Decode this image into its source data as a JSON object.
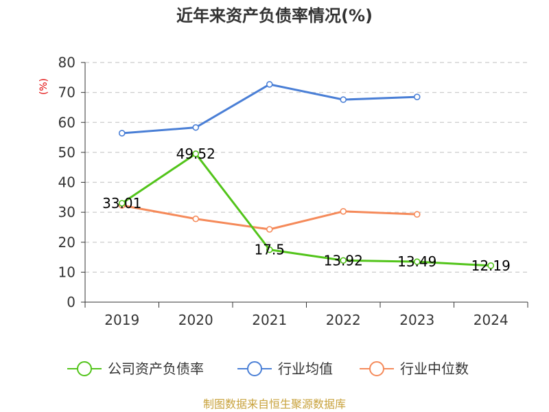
{
  "chart_data": {
    "type": "line",
    "title": "近年来资产负债率情况(%)",
    "ylabel": "(%)",
    "ylim": [
      0,
      80
    ],
    "yticks": [
      "0",
      "10",
      "20",
      "30",
      "40",
      "50",
      "60",
      "70",
      "80"
    ],
    "categories": [
      "2019",
      "2020",
      "2021",
      "2022",
      "2023",
      "2024"
    ],
    "grid": true,
    "legend_position": "bottom",
    "series": [
      {
        "name": "公司资产负债率",
        "color": "#52c41a",
        "values": [
          33.01,
          49.52,
          17.5,
          13.92,
          13.49,
          12.19
        ],
        "labels": [
          "33.01",
          "49.52",
          "17.5",
          "13.92",
          "13.49",
          "12.19"
        ]
      },
      {
        "name": "行业均值",
        "color": "#4a7fd6",
        "values": [
          56.4,
          58.3,
          72.7,
          67.6,
          68.5,
          null
        ]
      },
      {
        "name": "行业中位数",
        "color": "#f58a5a",
        "values": [
          32.3,
          27.8,
          24.3,
          30.3,
          29.3,
          null
        ]
      }
    ]
  },
  "source": "制图数据来自恒生聚源数据库"
}
